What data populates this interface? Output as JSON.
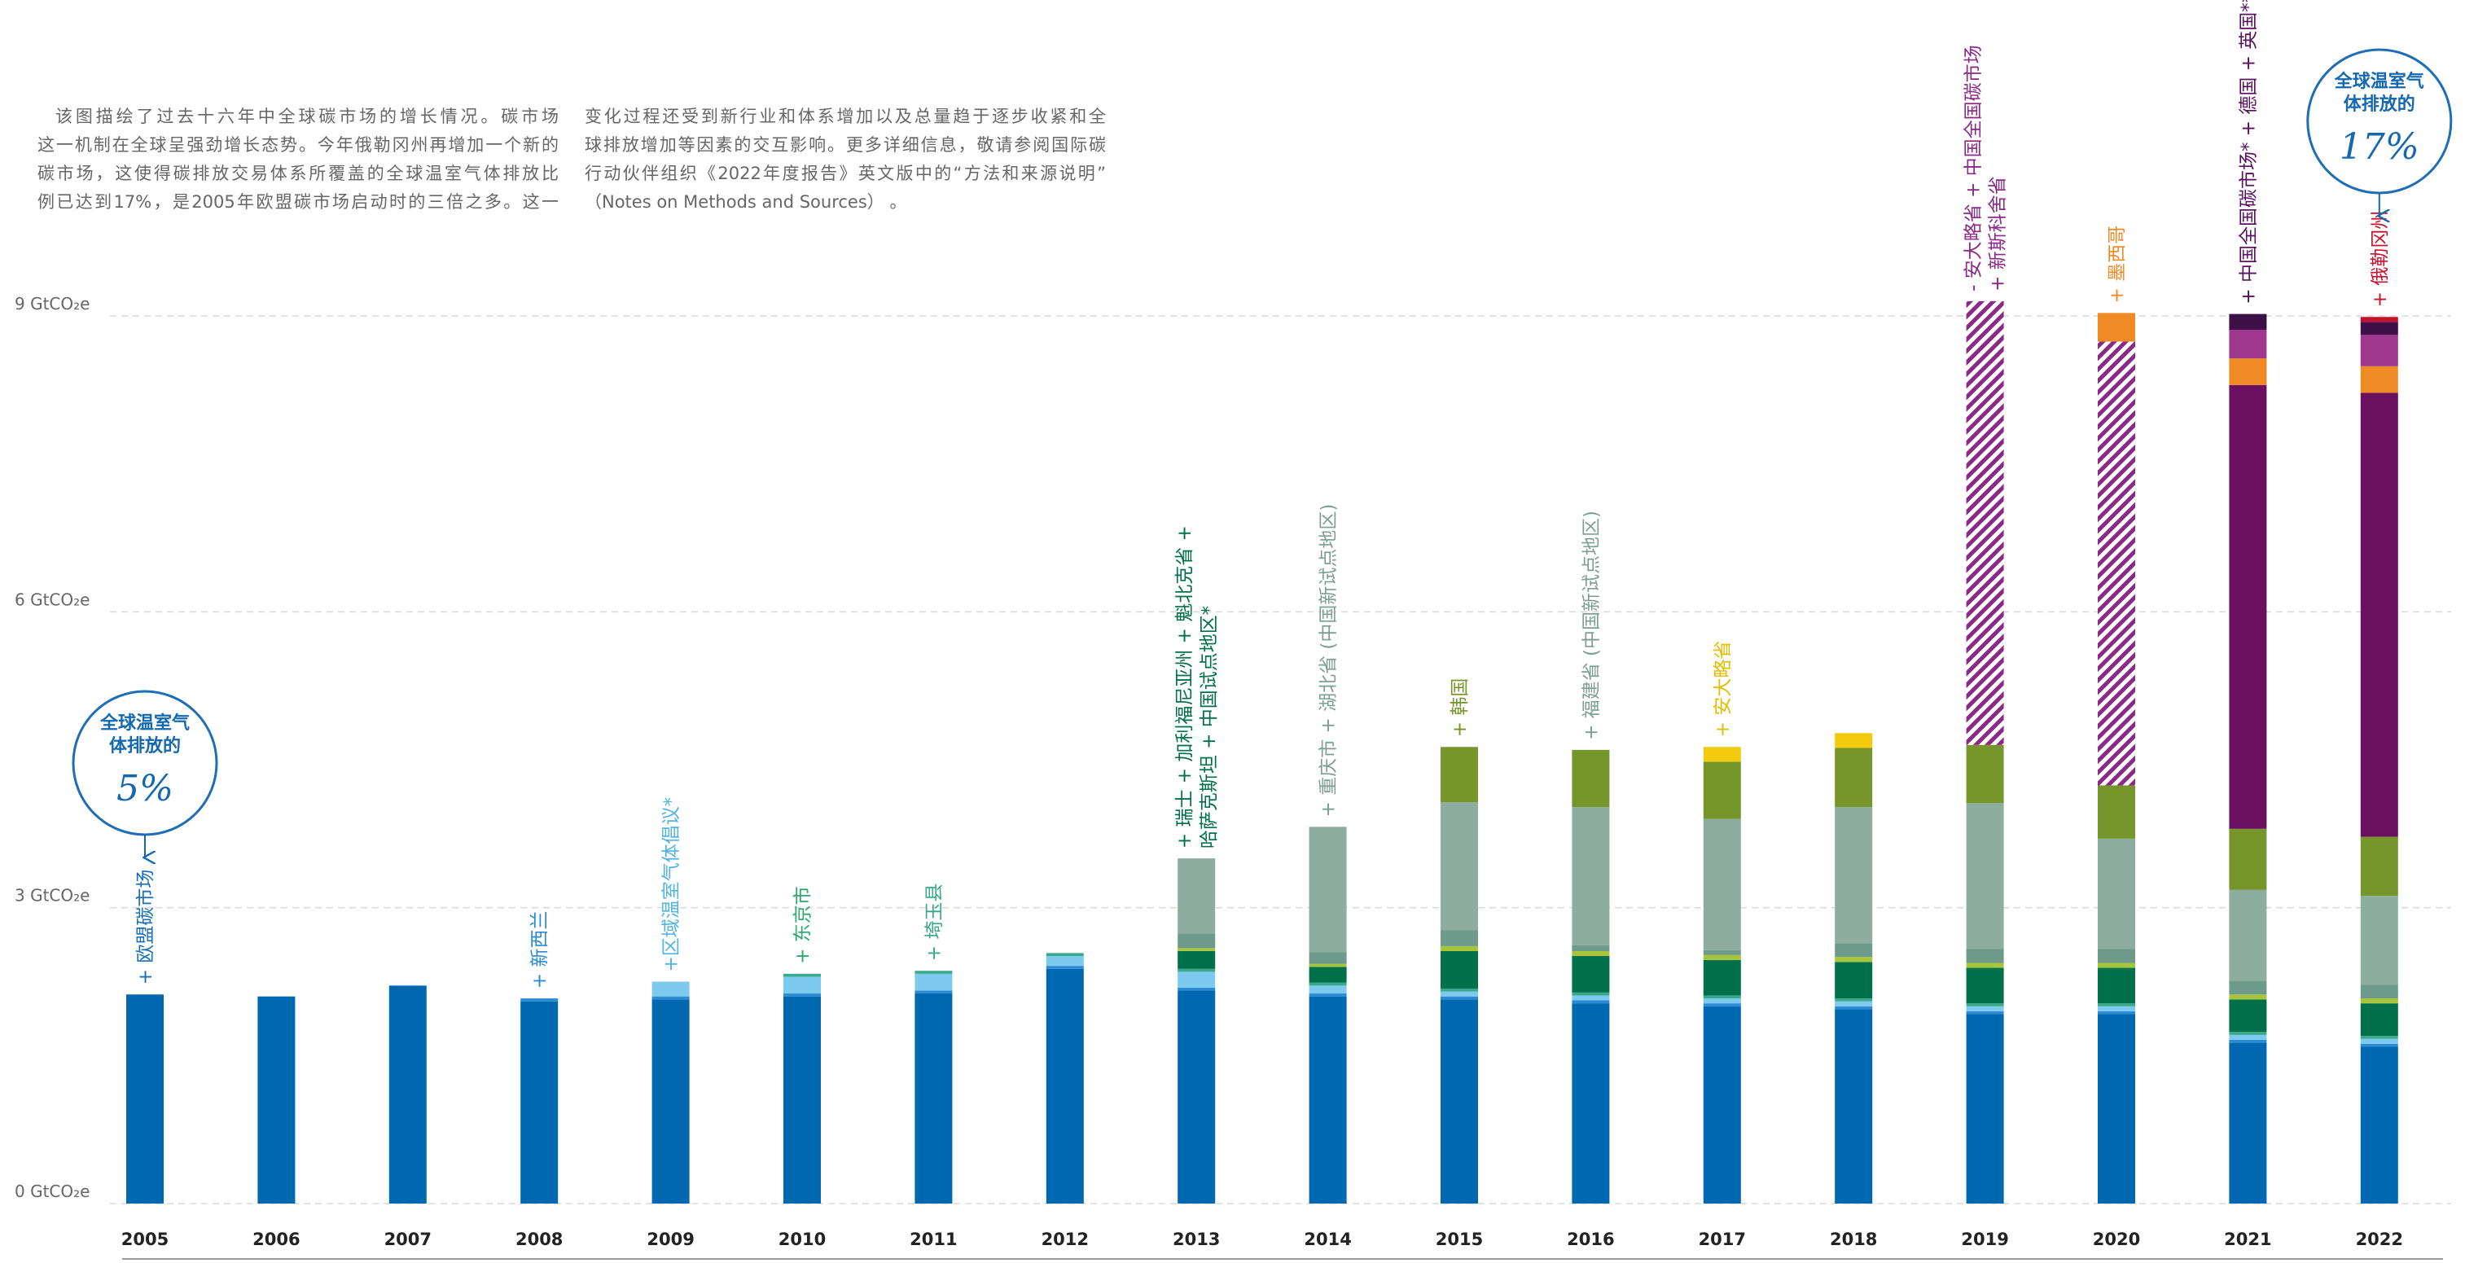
{
  "description": {
    "left": [
      "该图描绘了过去十六年中全球碳市场的增长情况。碳市场",
      "这一机制在全球呈强劲增长态势。今年俄勒冈州再增加一个新的",
      "碳市场，这使得碳排放交易体系所覆盖的全球温室气体排放比",
      "例已达到17%，是2005年欧盟碳市场启动时的三倍之多。这一"
    ],
    "right": [
      "变化过程还受到新行业和体系增加以及总量趋于逐步收紧和全",
      "球排放增加等因素的交互影响。更多详细信息，敬请参阅国际碳",
      "行动伙伴组织《2022年度报告》英文版中的“方法和来源说明”",
      "（Notes on Methods and Sources） 。"
    ]
  },
  "chart_data": {
    "type": "stacked_bar",
    "categories": [
      "2005",
      "2006",
      "2007",
      "2008",
      "2009",
      "2010",
      "2011",
      "2012",
      "2013",
      "2014",
      "2015",
      "2016",
      "2017",
      "2018",
      "2019",
      "2020",
      "2021",
      "2022"
    ],
    "ylim": [
      0,
      9
    ],
    "yticks": [
      {
        "value": 0,
        "label": "0 GtCO₂e"
      },
      {
        "value": 3,
        "label": "3 GtCO₂e"
      },
      {
        "value": 6,
        "label": "6 GtCO₂e"
      },
      {
        "value": 9,
        "label": "9 GtCO₂e"
      }
    ],
    "grid": true,
    "series": [
      {
        "color": "#0067b1",
        "values": [
          2.12,
          2.1,
          2.21,
          2.05,
          2.07,
          2.1,
          2.13,
          2.38,
          2.16,
          2.1,
          2.07,
          2.03,
          2.0,
          1.97,
          1.92,
          1.92,
          1.63,
          1.59
        ]
      },
      {
        "color": "#2a8ad4",
        "values": [
          null,
          null,
          null,
          0.03,
          0.03,
          0.03,
          0.03,
          0.03,
          0.03,
          0.03,
          0.03,
          0.03,
          0.03,
          0.03,
          0.03,
          0.03,
          0.03,
          0.03
        ]
      },
      {
        "color": "#7ccbef",
        "values": [
          null,
          null,
          null,
          null,
          0.15,
          0.17,
          0.17,
          0.1,
          0.16,
          0.08,
          0.05,
          0.05,
          0.05,
          0.05,
          0.05,
          0.05,
          0.05,
          0.05
        ]
      },
      {
        "color": "#3aa88a",
        "values": [
          null,
          null,
          null,
          null,
          null,
          0.03,
          0.03,
          0.03,
          0.03,
          0.03,
          0.03,
          0.03,
          0.03,
          0.03,
          0.03,
          0.03,
          0.03,
          0.03
        ]
      },
      {
        "color": "#00704a",
        "values": [
          null,
          null,
          null,
          null,
          null,
          null,
          null,
          null,
          0.18,
          0.16,
          0.38,
          0.37,
          0.36,
          0.37,
          0.36,
          0.36,
          0.33,
          0.33
        ]
      },
      {
        "color": "#a8c43a",
        "values": [
          null,
          null,
          null,
          null,
          null,
          null,
          null,
          null,
          0.03,
          0.03,
          0.05,
          0.05,
          0.05,
          0.05,
          0.05,
          0.05,
          0.05,
          0.05
        ]
      },
      {
        "color": "#6d9a8a",
        "values": [
          null,
          null,
          null,
          null,
          null,
          null,
          null,
          null,
          0.15,
          0.12,
          0.16,
          0.06,
          0.05,
          0.14,
          0.14,
          0.14,
          0.14,
          0.14
        ]
      },
      {
        "color": "#8cad9f",
        "values": [
          null,
          null,
          null,
          null,
          null,
          null,
          null,
          null,
          0.76,
          1.27,
          1.3,
          1.4,
          1.33,
          1.38,
          1.48,
          1.12,
          0.92,
          0.9
        ]
      },
      {
        "color": "#76962b",
        "values": [
          null,
          null,
          null,
          null,
          null,
          null,
          null,
          null,
          null,
          null,
          0.56,
          0.58,
          0.58,
          0.6,
          0.59,
          0.54,
          0.62,
          0.6
        ]
      },
      {
        "color": "#f2cc0c",
        "values": [
          null,
          null,
          null,
          null,
          null,
          null,
          null,
          null,
          null,
          null,
          null,
          null,
          0.15,
          0.15,
          null,
          null,
          null,
          null
        ]
      },
      {
        "color": "#8b2a86",
        "pattern": "hatch",
        "values": [
          null,
          null,
          null,
          null,
          null,
          null,
          null,
          null,
          null,
          null,
          null,
          null,
          null,
          null,
          4.5,
          4.5,
          null,
          null
        ]
      },
      {
        "color": "#6b1060",
        "values": [
          null,
          null,
          null,
          null,
          null,
          null,
          null,
          null,
          null,
          null,
          null,
          null,
          null,
          null,
          null,
          null,
          4.5,
          4.5
        ]
      },
      {
        "color": "#f08a24",
        "values": [
          null,
          null,
          null,
          null,
          null,
          null,
          null,
          null,
          null,
          null,
          null,
          null,
          null,
          null,
          null,
          0.29,
          0.27,
          0.27
        ]
      },
      {
        "color": "#a0378f",
        "values": [
          null,
          null,
          null,
          null,
          null,
          null,
          null,
          null,
          null,
          null,
          null,
          null,
          null,
          null,
          null,
          null,
          0.29,
          0.32
        ]
      },
      {
        "color": "#3d1148",
        "values": [
          null,
          null,
          null,
          null,
          null,
          null,
          null,
          null,
          null,
          null,
          null,
          null,
          null,
          null,
          null,
          null,
          0.16,
          0.13
        ]
      },
      {
        "color": "#c8102e",
        "values": [
          null,
          null,
          null,
          null,
          null,
          null,
          null,
          null,
          null,
          null,
          null,
          null,
          null,
          null,
          null,
          null,
          null,
          0.05
        ]
      }
    ],
    "annotations": [
      {
        "x": "2005",
        "color": "#1a6fb6",
        "lines": [
          "+ 欧盟碳市场"
        ]
      },
      {
        "x": "2008",
        "color": "#2a8ad4",
        "lines": [
          "+ 新西兰"
        ]
      },
      {
        "x": "2009",
        "color": "#4fb5e3",
        "lines": [
          "+区域温室气体倡议*"
        ]
      },
      {
        "x": "2010",
        "color": "#2aa86e",
        "lines": [
          "+ 东京市"
        ]
      },
      {
        "x": "2011",
        "color": "#3aa88a",
        "lines": [
          "+ 埼玉县"
        ]
      },
      {
        "x": "2013",
        "color": "#00704a",
        "lines": [
          "+ 瑞士 + 加利福尼亚州 + 魁北克省 +",
          "哈萨克斯坦 + 中国试点地区*"
        ]
      },
      {
        "x": "2014",
        "color": "#7d9f92",
        "lines": [
          "+ 重庆市 + 湖北省 (中国新试点地区)"
        ]
      },
      {
        "x": "2015",
        "color": "#76962b",
        "lines": [
          "+ 韩国"
        ]
      },
      {
        "x": "2016",
        "color": "#7d9f92",
        "lines": [
          "+ 福建省 (中国新试点地区)"
        ]
      },
      {
        "x": "2017",
        "color": "#e3bd00",
        "lines": [
          "+ 安大略省"
        ]
      },
      {
        "x": "2019",
        "color": "#8b2a86",
        "lines": [
          "- 安大略省 + 中国全国碳市场",
          "+ 新斯科舍省"
        ]
      },
      {
        "x": "2020",
        "color": "#f08a24",
        "lines": [
          "+ 墨西哥"
        ]
      },
      {
        "x": "2021",
        "color": "#5a1060",
        "lines": [
          "+ 中国全国碳市场* + 德国 + 英国**"
        ]
      },
      {
        "x": "2022",
        "color": "#c8102e",
        "lines": [
          "+ 俄勒冈州"
        ]
      }
    ],
    "callouts": [
      {
        "x": "2005",
        "lines": [
          "全球温室气",
          "体排放的"
        ],
        "share": "5%"
      },
      {
        "x": "2022",
        "lines": [
          "全球温室气",
          "体排放的"
        ],
        "share": "17%"
      }
    ]
  }
}
